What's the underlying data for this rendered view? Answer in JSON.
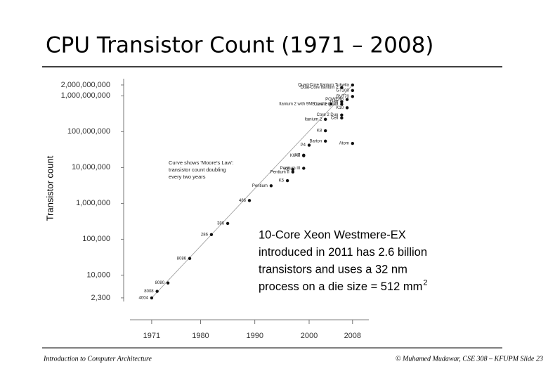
{
  "chart_data": {
    "type": "scatter",
    "title": "CPU Transistor Count (1971 – 2008)",
    "y_label": "Transistor count",
    "log_y": true,
    "color": "#111111",
    "xlim": [
      1967,
      2011
    ],
    "xticks": [
      1971,
      1980,
      1990,
      2000,
      2008
    ],
    "ylim": [
      2000,
      2500000000
    ],
    "yticks": [
      {
        "value": 2300,
        "label": "2,300"
      },
      {
        "value": 10000,
        "label": "10,000"
      },
      {
        "value": 100000,
        "label": "100,000"
      },
      {
        "value": 1000000,
        "label": "1,000,000"
      },
      {
        "value": 10000000,
        "label": "10,000,000"
      },
      {
        "value": 100000000,
        "label": "100,000,000"
      },
      {
        "value": 1000000000,
        "label": "1,000,000,000"
      },
      {
        "value": 2000000000,
        "label": "2,000,000,000"
      }
    ],
    "labels": [
      "4004",
      "8008",
      "8080",
      "8086",
      "286",
      "386",
      "486",
      "Pentium",
      "K5",
      "Pentium II",
      "K6",
      "Pentium III",
      "K6-III",
      "K7",
      "P4",
      "Barton",
      "Atom",
      "K8",
      "Itanium 2",
      "Core 2 Duo",
      "Cell",
      "Core 2 Quad",
      "Itanium 2 with 9MB cache",
      "K10",
      "POWER6",
      "G80",
      "RV770",
      "GT200",
      "Dual-Core Itanium 2",
      "Quad-Core Itanium Tukwila"
    ],
    "x": [
      1971,
      1972,
      1974,
      1978,
      1982,
      1985,
      1989,
      1993,
      1996,
      1997,
      1997,
      1999,
      1999,
      1999,
      2000,
      2003,
      2008,
      2003,
      2003,
      2006,
      2006,
      2006,
      2004,
      2007,
      2007,
      2006,
      2008,
      2008,
      2006,
      2008
    ],
    "values": [
      2300,
      3500,
      6000,
      29000,
      134000,
      275000,
      1200000,
      3100000,
      4300000,
      7500000,
      8800000,
      9500000,
      21300000,
      22000000,
      42000000,
      54300000,
      47000000,
      105900000,
      220000000,
      291000000,
      241000000,
      582000000,
      592000000,
      463000000,
      789000000,
      681000000,
      956000000,
      1400000000,
      1700000000,
      2000000000
    ],
    "annotation": [
      "Curve shows 'Moore's Law':",
      "transistor count doubling",
      "every two years"
    ]
  },
  "callout": {
    "lines": [
      "10-Core Xeon Westmere-EX",
      "introduced in 2011 has 2.6 billion",
      "transistors and uses a 32 nm",
      "process on a die size = 512 mm"
    ],
    "superscript": "2"
  },
  "footer": {
    "left": "Introduction to Computer Architecture",
    "right": "© Muhamed Mudawar, CSE 308 – KFUPM Slide 23"
  }
}
